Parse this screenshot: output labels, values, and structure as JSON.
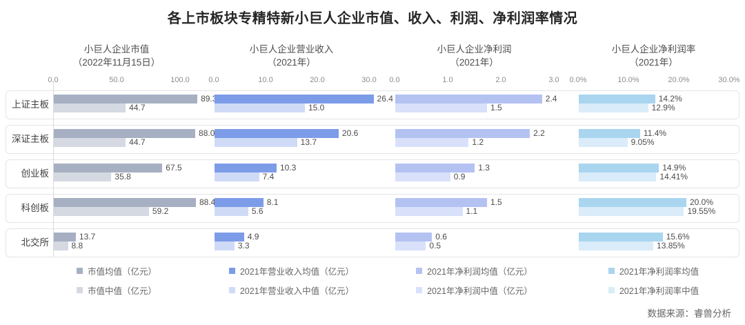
{
  "title": "各上市板块专精特新小巨人企业市值、收入、利润、净利润率情况",
  "source": "数据来源：睿兽分析",
  "chart_data": {
    "type": "bar",
    "orientation": "horizontal",
    "grid": false,
    "legend_position": "bottom",
    "categories": [
      "上证主板",
      "深证主板",
      "创业板",
      "科创板",
      "北交所"
    ],
    "panels": [
      {
        "title": "小巨人企业市值",
        "subtitle": "（2022年11月15日）",
        "xlim": [
          0,
          100
        ],
        "tick_labels": [
          "0.0",
          "50.0",
          "100.0"
        ],
        "series": [
          {
            "name": "市值均值（亿元）",
            "color": "#a6b0c2",
            "values": [
              89.3,
              88.0,
              67.5,
              88.4,
              13.7
            ],
            "labels": [
              "89.3",
              "88.0",
              "67.5",
              "88.4",
              "13.7"
            ]
          },
          {
            "name": "市值中值（亿元）",
            "color": "#d4d9e2",
            "values": [
              44.7,
              44.7,
              35.8,
              59.2,
              8.8
            ],
            "labels": [
              "44.7",
              "44.7",
              "35.8",
              "59.2",
              "8.8"
            ]
          }
        ]
      },
      {
        "title": "小巨人企业营业收入",
        "subtitle": "（2021年）",
        "xlim": [
          0,
          30
        ],
        "tick_labels": [
          "0.0",
          "10.0",
          "20.0",
          "30.0"
        ],
        "series": [
          {
            "name": "2021年营业收入均值（亿元）",
            "color": "#7d9ce8",
            "values": [
              26.4,
              20.6,
              10.3,
              8.1,
              4.9
            ],
            "labels": [
              "26.4",
              "20.6",
              "10.3",
              "8.1",
              "4.9"
            ]
          },
          {
            "name": "2021年营业收入中值（亿元）",
            "color": "#cfdbf6",
            "values": [
              15.0,
              13.7,
              7.4,
              5.6,
              3.3
            ],
            "labels": [
              "15.0",
              "13.7",
              "7.4",
              "5.6",
              "3.3"
            ]
          }
        ]
      },
      {
        "title": "小巨人企业净利润",
        "subtitle": "（2021年）",
        "xlim": [
          0,
          3
        ],
        "tick_labels": [
          "0.0",
          "1.0",
          "2.0",
          "3.0"
        ],
        "series": [
          {
            "name": "2021年净利润均值（亿元）",
            "color": "#b4c2f2",
            "values": [
              2.4,
              2.2,
              1.3,
              1.5,
              0.6
            ],
            "labels": [
              "2.4",
              "2.2",
              "1.3",
              "1.5",
              "0.6"
            ]
          },
          {
            "name": "2021年净利润中值（亿元）",
            "color": "#d9e1fa",
            "values": [
              1.5,
              1.2,
              0.9,
              1.1,
              0.5
            ],
            "labels": [
              "1.5",
              "1.2",
              "0.9",
              "1.1",
              "0.5"
            ]
          }
        ]
      },
      {
        "title": "小巨人企业净利润率",
        "subtitle": "（2021年）",
        "xlim": [
          0,
          30
        ],
        "tick_labels": [
          "0.0%",
          "10.0%",
          "20.0%",
          "30.0%"
        ],
        "series": [
          {
            "name": "2021年净利润率均值",
            "color": "#a9d5ef",
            "values": [
              14.2,
              11.4,
              14.9,
              20.0,
              15.6
            ],
            "labels": [
              "14.2%",
              "11.4%",
              "14.9%",
              "20.0%",
              "15.6%"
            ]
          },
          {
            "name": "2021年净利润率中值",
            "color": "#daecf9",
            "values": [
              12.9,
              9.05,
              14.41,
              19.55,
              13.85
            ],
            "labels": [
              "12.9%",
              "9.05%",
              "14.41%",
              "19.55%",
              "13.85%"
            ]
          }
        ]
      }
    ]
  }
}
